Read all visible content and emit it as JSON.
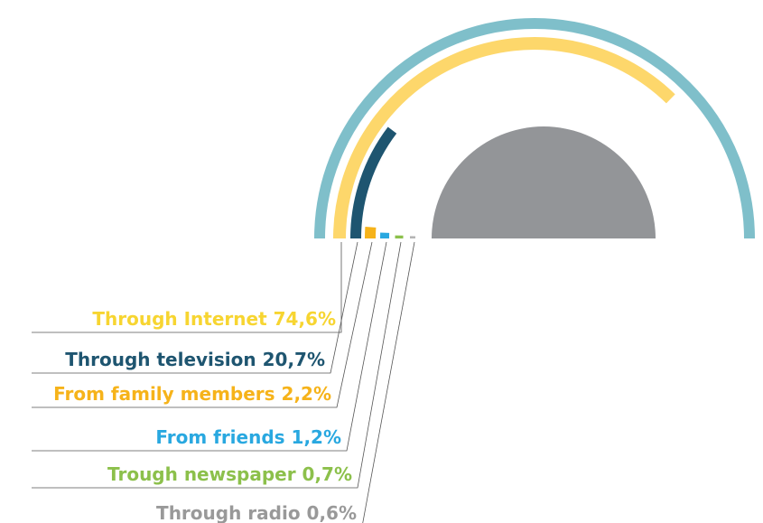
{
  "chart_data": {
    "type": "radial-bar",
    "categories": [
      "Through Internet",
      "Through television",
      "From family members",
      "From friends",
      "Trough newspaper",
      "Through radio"
    ],
    "values": [
      74.6,
      20.7,
      2.2,
      1.2,
      0.7,
      0.6
    ],
    "value_labels": [
      "74,6%",
      "20,7%",
      "2,2%",
      "1,2%",
      "0,7%",
      "0,6%"
    ],
    "colors": [
      "#fdd76b",
      "#1e5570",
      "#f6b31a",
      "#29a8e0",
      "#8cc04b",
      "#b5b5b5"
    ],
    "label_colors": [
      "#f7d531",
      "#1e5570",
      "#f6b31a",
      "#29a8e0",
      "#8cc04b",
      "#999999"
    ],
    "ylim": [
      0,
      100
    ]
  }
}
